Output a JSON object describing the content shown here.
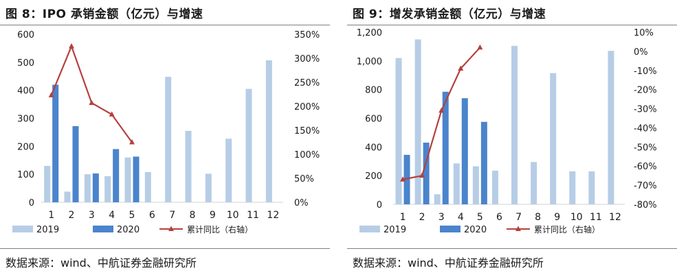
{
  "chart_data": [
    {
      "type": "bar",
      "title": "图 8：IPO 承销金额（亿元）与增速",
      "categories": [
        "1",
        "2",
        "3",
        "4",
        "5",
        "6",
        "7",
        "8",
        "9",
        "10",
        "11",
        "12"
      ],
      "series": [
        {
          "name": "2019",
          "type": "bar",
          "axis": "left",
          "color": "#b7cde6",
          "values": [
            130,
            38,
            100,
            93,
            160,
            108,
            448,
            255,
            102,
            227,
            405,
            507
          ]
        },
        {
          "name": "2020",
          "type": "bar",
          "axis": "left",
          "color": "#4a84cc",
          "values": [
            420,
            272,
            103,
            190,
            163,
            null,
            null,
            null,
            null,
            null,
            null,
            null
          ]
        },
        {
          "name": "累计同比（右轴）",
          "type": "line",
          "axis": "right",
          "color": "#b5403d",
          "values": [
            223,
            325,
            207,
            183,
            125,
            null,
            null,
            null,
            null,
            null,
            null,
            null
          ]
        }
      ],
      "y_left": {
        "min": 0,
        "max": 600,
        "step": 100,
        "ticks": [
          "0",
          "100",
          "200",
          "300",
          "400",
          "500",
          "600"
        ]
      },
      "y_right": {
        "min": 0,
        "max": 350,
        "step": 50,
        "ticks": [
          "0%",
          "50%",
          "100%",
          "150%",
          "200%",
          "250%",
          "300%",
          "350%"
        ]
      },
      "legend_position": "bottom",
      "grid": false,
      "source": "数据来源：wind、中航证券金融研究所"
    },
    {
      "type": "bar",
      "title": "图 9：增发承销金额（亿元）与增速",
      "categories": [
        "1",
        "2",
        "3",
        "4",
        "5",
        "6",
        "7",
        "8",
        "9",
        "10",
        "11",
        "12"
      ],
      "series": [
        {
          "name": "2019",
          "type": "bar",
          "axis": "left",
          "color": "#b7cde6",
          "values": [
            1020,
            1150,
            70,
            285,
            265,
            235,
            1105,
            295,
            915,
            230,
            230,
            1070
          ]
        },
        {
          "name": "2020",
          "type": "bar",
          "axis": "left",
          "color": "#4a84cc",
          "values": [
            345,
            430,
            785,
            740,
            575,
            null,
            null,
            null,
            null,
            null,
            null,
            null
          ]
        },
        {
          "name": "累计同比（右轴）",
          "type": "line",
          "axis": "right",
          "color": "#b5403d",
          "values": [
            -67,
            -65,
            -31,
            -9,
            2,
            null,
            null,
            null,
            null,
            null,
            null,
            null
          ]
        }
      ],
      "y_left": {
        "min": 0,
        "max": 1200,
        "step": 200,
        "ticks": [
          "0",
          "200",
          "400",
          "600",
          "800",
          "1,000",
          "1,200"
        ]
      },
      "y_right": {
        "min": -80,
        "max": 10,
        "step": 10,
        "ticks": [
          "-80%",
          "-70%",
          "-60%",
          "-50%",
          "-40%",
          "-30%",
          "-20%",
          "-10%",
          "0%",
          "10%"
        ]
      },
      "legend_position": "bottom",
      "grid": false,
      "source": "数据来源：wind、中航证券金融研究所"
    }
  ]
}
